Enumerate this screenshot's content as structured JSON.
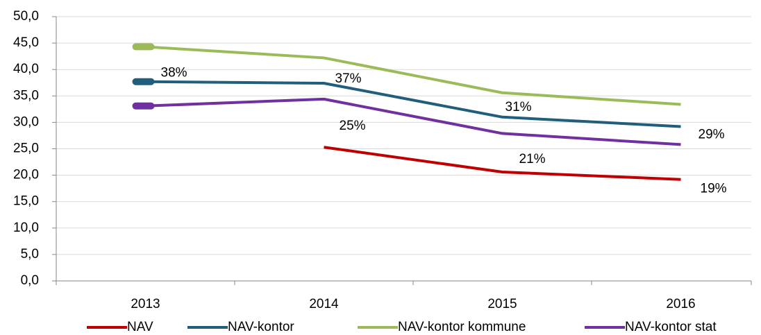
{
  "chart_data": {
    "type": "line",
    "categories": [
      "2013",
      "2014",
      "2015",
      "2016"
    ],
    "series": [
      {
        "name": "NAV",
        "color": "#c00000",
        "values": [
          null,
          25.3,
          20.6,
          19.2
        ],
        "value_labels": [
          null,
          "25%",
          "21%",
          "19%"
        ]
      },
      {
        "name": "NAV-kontor",
        "color": "#215e7b",
        "values": [
          37.7,
          37.4,
          31.0,
          29.2
        ],
        "value_labels": [
          "38%",
          "37%",
          "31%",
          "29%"
        ]
      },
      {
        "name": "NAV-kontor kommune",
        "color": "#9bbb59",
        "values": [
          44.3,
          42.2,
          35.6,
          33.4
        ]
      },
      {
        "name": "NAV-kontor stat",
        "color": "#7030a0",
        "values": [
          33.1,
          34.4,
          27.9,
          25.8
        ]
      }
    ],
    "ylim": [
      0,
      50
    ],
    "yticks": [
      {
        "value": 0,
        "label": "0,0"
      },
      {
        "value": 5,
        "label": "5,0"
      },
      {
        "value": 10,
        "label": "10,0"
      },
      {
        "value": 15,
        "label": "15,0"
      },
      {
        "value": 20,
        "label": "20,0"
      },
      {
        "value": 25,
        "label": "25,0"
      },
      {
        "value": 30,
        "label": "30,0"
      },
      {
        "value": 35,
        "label": "35,0"
      },
      {
        "value": 40,
        "label": "40,0"
      },
      {
        "value": 45,
        "label": "45,0"
      },
      {
        "value": 50,
        "label": "50,0"
      }
    ],
    "grid": true,
    "legend": "bottom"
  }
}
